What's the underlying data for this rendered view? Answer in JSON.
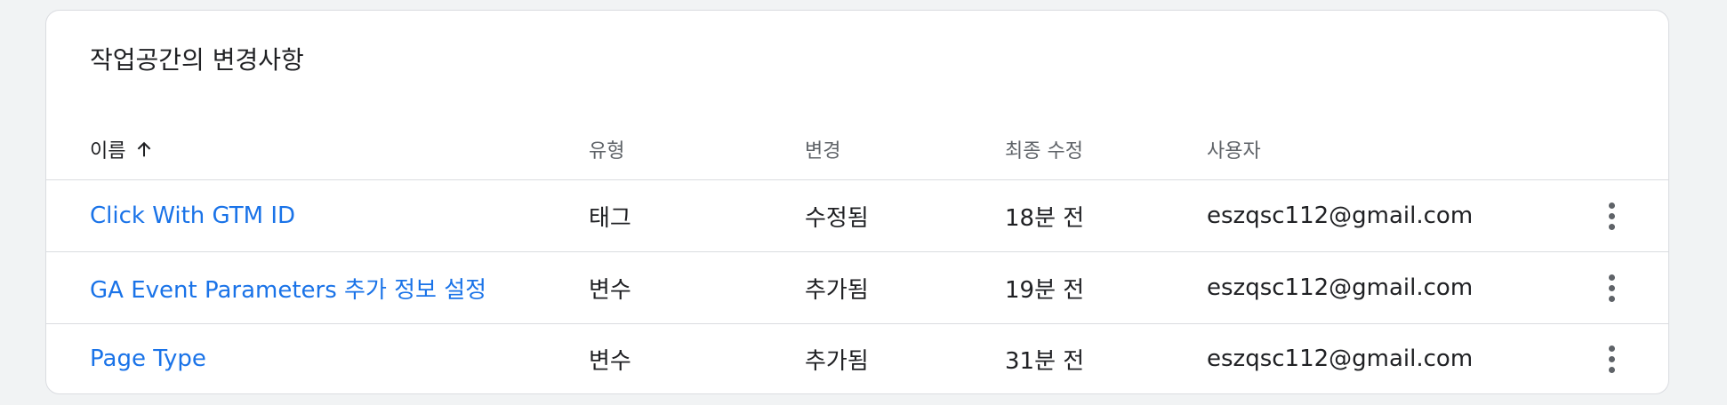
{
  "card": {
    "title": "작업공간의 변경사항"
  },
  "table": {
    "headers": {
      "name": "이름",
      "type": "유형",
      "change": "변경",
      "modified": "최종 수정",
      "user": "사용자"
    },
    "sort": {
      "column": "name",
      "direction": "ascending",
      "icon": "arrow-up-icon"
    },
    "rows": [
      {
        "name": "Click With GTM ID",
        "type": "태그",
        "change": "수정됨",
        "modified": "18분 전",
        "user": "eszqsc112@gmail.com"
      },
      {
        "name": "GA Event Parameters 추가 정보 설정",
        "type": "변수",
        "change": "추가됨",
        "modified": "19분 전",
        "user": "eszqsc112@gmail.com"
      },
      {
        "name": "Page Type",
        "type": "변수",
        "change": "추가됨",
        "modified": "31분 전",
        "user": "eszqsc112@gmail.com"
      }
    ]
  },
  "colors": {
    "link": "#1a73e8",
    "text": "#202124",
    "secondary_text": "#5f6368",
    "divider": "#dadce0",
    "background": "#f1f3f4"
  }
}
